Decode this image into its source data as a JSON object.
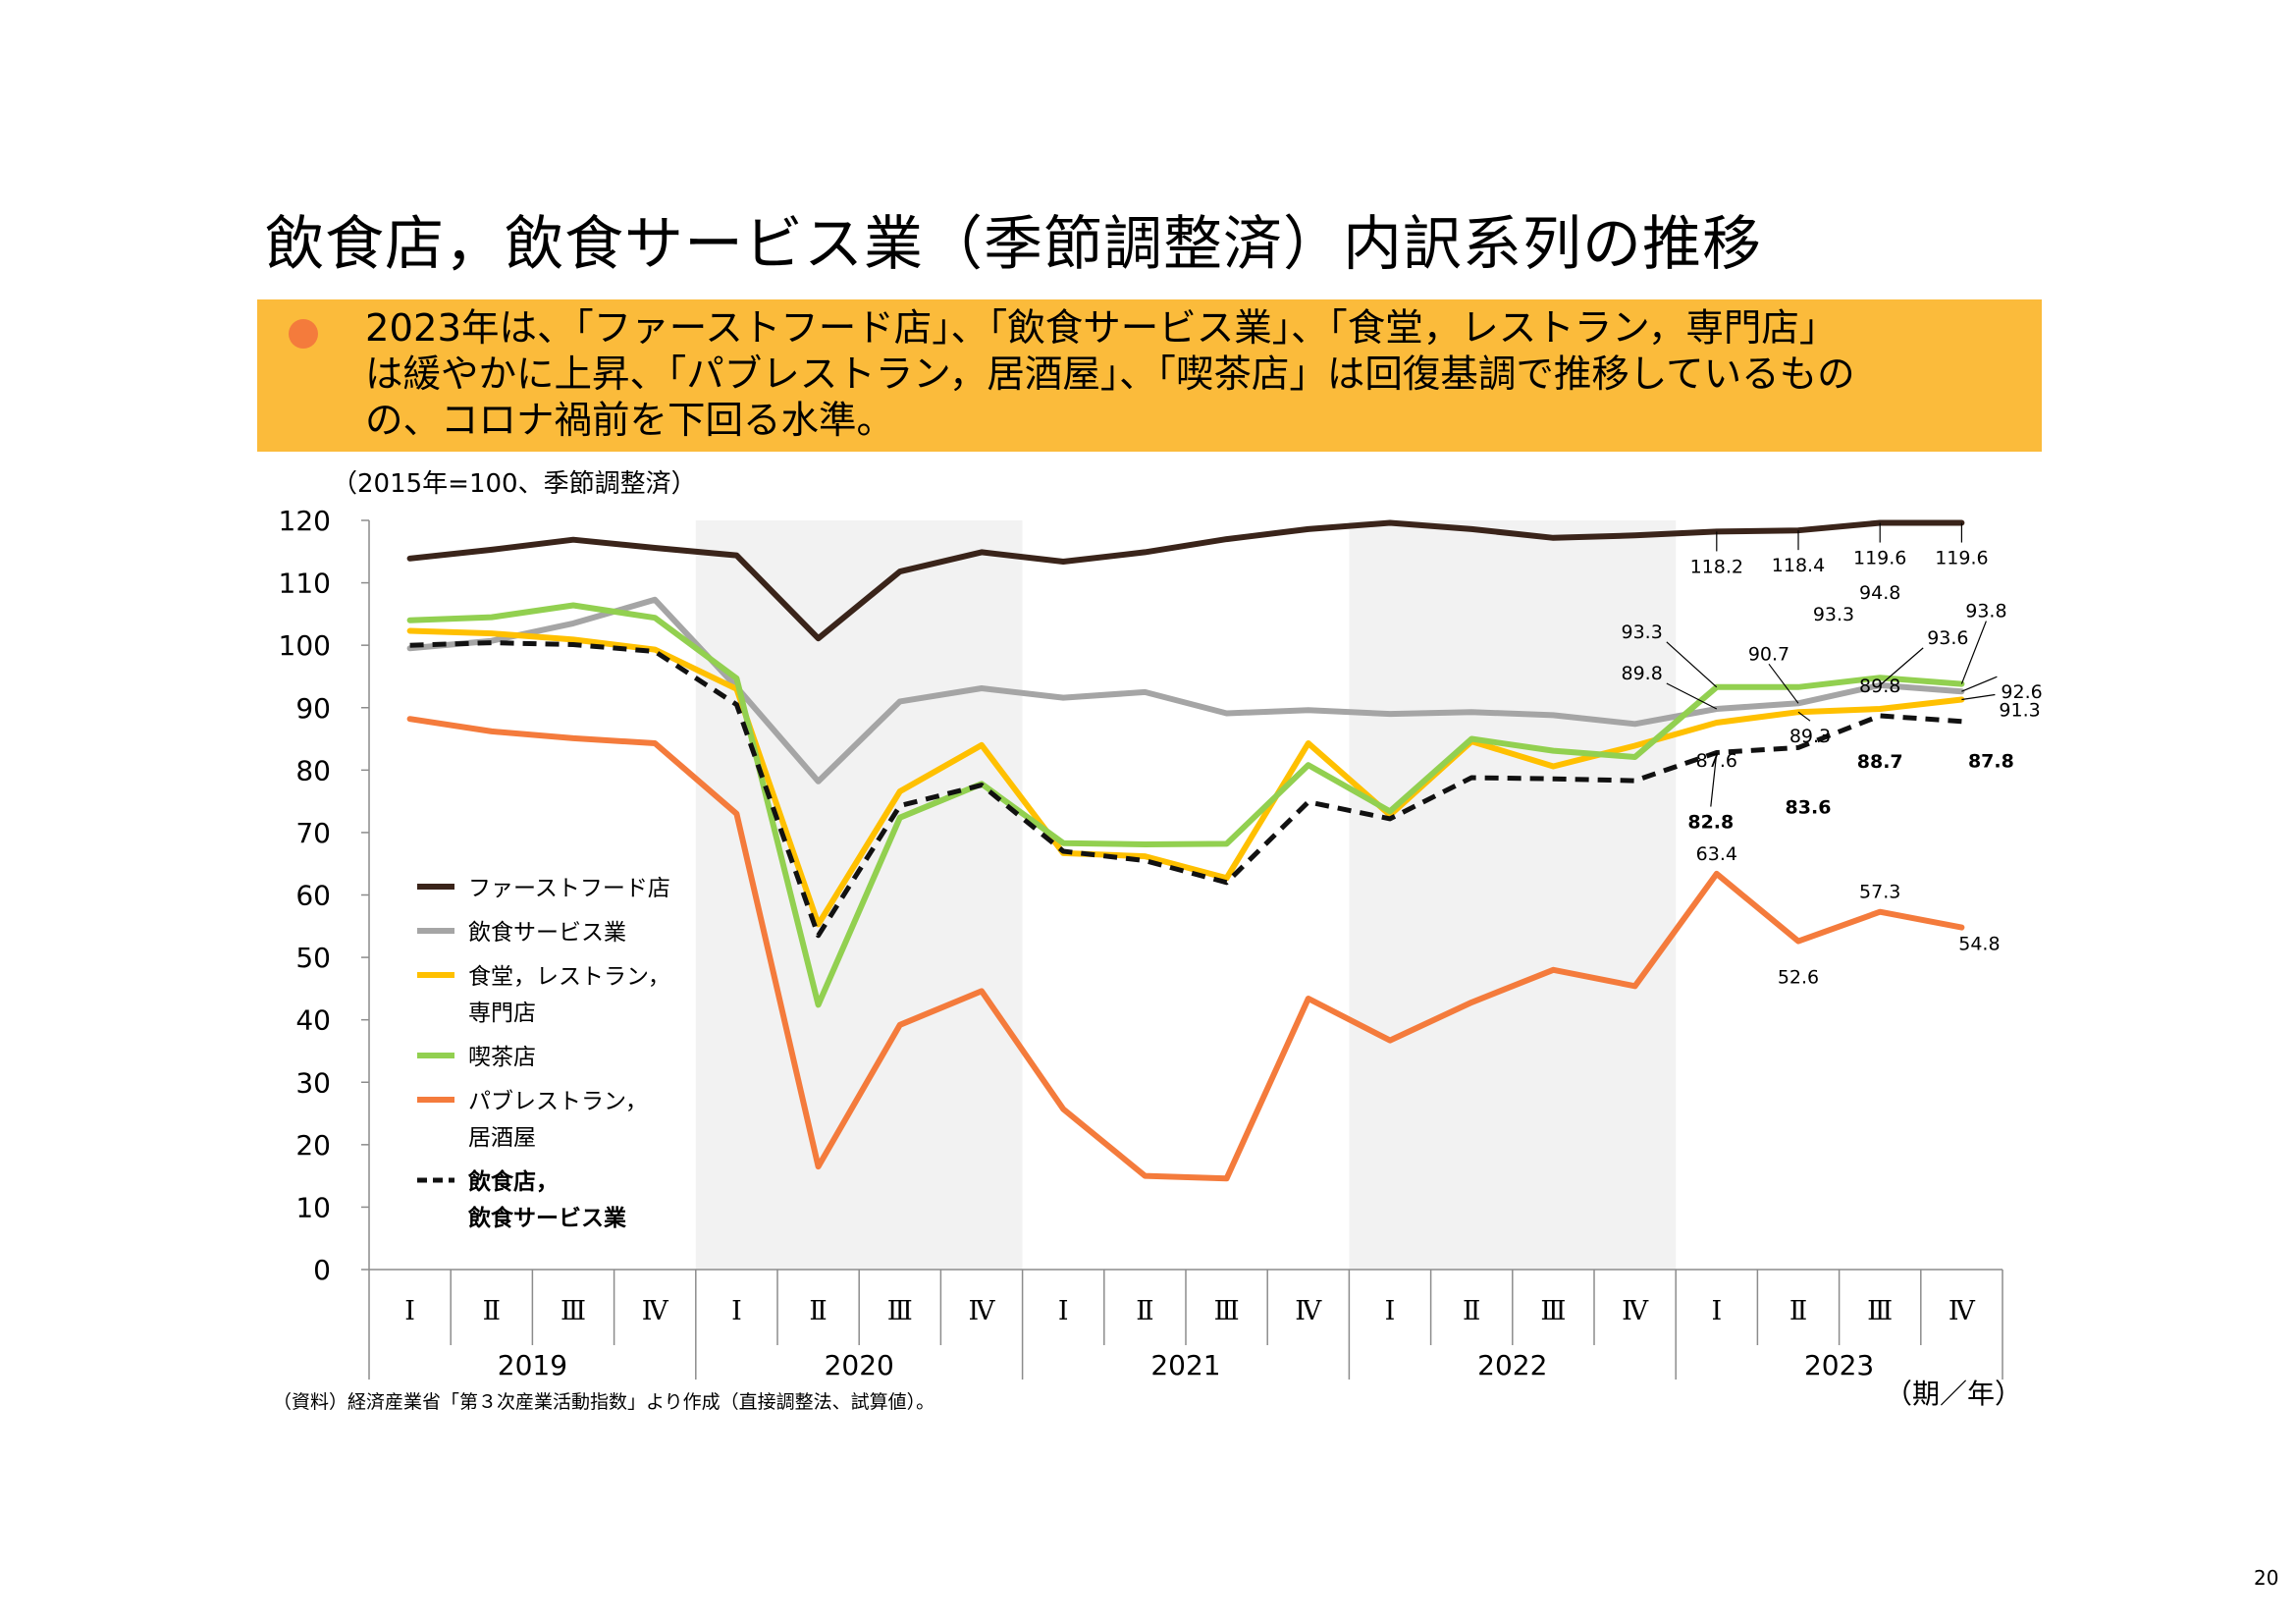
{
  "slide": {
    "title": "飲食店，飲食サービス業（季節調整済）内訳系列の推移",
    "summary": "2023年は、「ファーストフード店」、「飲食サービス業」、「食堂，レストラン，専門店」\nは緩やかに上昇、「パブレストラン，居酒屋」、「喫茶店」は回復基調で推移しているもの\nの、コロナ禍前を下回る水準。",
    "source_note": "（資料）経済産業省「第３次産業活動指数」より作成（直接調整法、試算値）。",
    "page_number": "20"
  },
  "colors": {
    "bullet": "#F47B3C",
    "summary_bg": "#FBBB3B",
    "shade": "#F2F2F2",
    "fastfood": "#3A241A",
    "service": "#A5A5A5",
    "restaurant": "#FFC000",
    "cafe": "#92D050",
    "pub": "#F47B3C",
    "total": "#111111"
  },
  "chart_data": {
    "type": "line",
    "unit_label": "（2015年=100、季節調整済）",
    "x_unit_label": "（期／年）",
    "ylim": [
      0,
      120
    ],
    "yticks": [
      0,
      10,
      20,
      30,
      40,
      50,
      60,
      70,
      80,
      90,
      100,
      110,
      120
    ],
    "quarter_labels": [
      "Ⅰ",
      "Ⅱ",
      "Ⅲ",
      "Ⅳ",
      "Ⅰ",
      "Ⅱ",
      "Ⅲ",
      "Ⅳ",
      "Ⅰ",
      "Ⅱ",
      "Ⅲ",
      "Ⅳ",
      "Ⅰ",
      "Ⅱ",
      "Ⅲ",
      "Ⅳ",
      "Ⅰ",
      "Ⅱ",
      "Ⅲ",
      "Ⅳ"
    ],
    "years": [
      "2019",
      "2020",
      "2021",
      "2022",
      "2023"
    ],
    "shaded_years": [
      "2020",
      "2022"
    ],
    "series": [
      {
        "key": "fastfood",
        "name": "ファーストフード店",
        "style": "solid",
        "values": [
          113.9,
          115.3,
          116.9,
          115.6,
          114.4,
          101.1,
          111.8,
          114.9,
          113.4,
          114.9,
          117.0,
          118.6,
          119.6,
          118.6,
          117.2,
          117.6,
          118.2,
          118.4,
          119.6,
          119.6
        ]
      },
      {
        "key": "service",
        "name": "飲食サービス業",
        "style": "solid",
        "values": [
          99.5,
          100.7,
          103.5,
          107.3,
          93.3,
          78.2,
          91.0,
          93.1,
          91.6,
          92.5,
          89.1,
          89.6,
          89.0,
          89.3,
          88.8,
          87.4,
          89.8,
          90.7,
          93.6,
          92.6
        ]
      },
      {
        "key": "restaurant",
        "name": "食堂，レストラン，専門店",
        "style": "solid",
        "values": [
          102.3,
          101.9,
          100.9,
          99.3,
          93.0,
          55.3,
          76.6,
          84.0,
          66.7,
          66.2,
          62.7,
          84.3,
          72.8,
          84.6,
          80.6,
          83.9,
          87.6,
          89.3,
          89.8,
          91.3
        ]
      },
      {
        "key": "cafe",
        "name": "喫茶店",
        "style": "solid",
        "values": [
          104.0,
          104.5,
          106.4,
          104.4,
          94.7,
          42.4,
          72.4,
          77.8,
          68.3,
          68.1,
          68.2,
          80.8,
          73.4,
          85.0,
          83.1,
          82.1,
          93.3,
          93.3,
          94.8,
          93.8
        ]
      },
      {
        "key": "pub",
        "name": "パブレストラン，居酒屋",
        "style": "solid",
        "values": [
          88.2,
          86.2,
          85.1,
          84.3,
          73.0,
          16.5,
          39.2,
          44.6,
          25.7,
          15.0,
          14.6,
          43.4,
          36.7,
          42.8,
          48.0,
          45.4,
          63.4,
          52.6,
          57.3,
          54.8
        ]
      },
      {
        "key": "total",
        "name": "飲食店，飲食サービス業",
        "style": "dashed",
        "values": [
          100.0,
          100.4,
          100.1,
          99.0,
          90.5,
          53.5,
          74.3,
          77.6,
          67.0,
          65.5,
          62.0,
          74.9,
          72.2,
          78.8,
          78.6,
          78.3,
          82.8,
          83.6,
          88.7,
          87.8
        ]
      }
    ],
    "legend": [
      {
        "key": "fastfood",
        "line1": "ファーストフード店",
        "line2": ""
      },
      {
        "key": "service",
        "line1": "飲食サービス業",
        "line2": ""
      },
      {
        "key": "restaurant",
        "line1": "食堂，レストラン，",
        "line2": "専門店"
      },
      {
        "key": "cafe",
        "line1": "喫茶店",
        "line2": ""
      },
      {
        "key": "pub",
        "line1": "パブレストラン，",
        "line2": "居酒屋"
      },
      {
        "key": "total",
        "line1": "飲食店，",
        "line2": "飲食サービス業",
        "bold": true
      }
    ],
    "data_labels": [
      {
        "series": "fastfood",
        "qi": 16,
        "text": "118.2"
      },
      {
        "series": "fastfood",
        "qi": 17,
        "text": "118.4"
      },
      {
        "series": "fastfood",
        "qi": 18,
        "text": "119.6"
      },
      {
        "series": "fastfood",
        "qi": 19,
        "text": "119.6"
      },
      {
        "series": "cafe",
        "qi": 16,
        "text": "93.3"
      },
      {
        "series": "service",
        "qi": 16,
        "text": "89.8"
      },
      {
        "series": "restaurant",
        "qi": 16,
        "text": "87.6"
      },
      {
        "series": "service",
        "qi": 17,
        "text": "90.7"
      },
      {
        "series": "cafe",
        "qi": 17,
        "text": "93.3"
      },
      {
        "series": "restaurant",
        "qi": 17,
        "text": "89.3"
      },
      {
        "series": "cafe",
        "qi": 18,
        "text": "94.8"
      },
      {
        "series": "service",
        "qi": 18,
        "text": "93.6"
      },
      {
        "series": "restaurant",
        "qi": 18,
        "text": "89.8"
      },
      {
        "series": "cafe",
        "qi": 19,
        "text": "93.8"
      },
      {
        "series": "service",
        "qi": 19,
        "text": "92.6"
      },
      {
        "series": "restaurant",
        "qi": 19,
        "text": "91.3"
      },
      {
        "series": "total",
        "qi": 16,
        "text": "82.8",
        "bold": true
      },
      {
        "series": "total",
        "qi": 17,
        "text": "83.6",
        "bold": true
      },
      {
        "series": "total",
        "qi": 18,
        "text": "88.7",
        "bold": true
      },
      {
        "series": "total",
        "qi": 19,
        "text": "87.8",
        "bold": true
      },
      {
        "series": "pub",
        "qi": 16,
        "text": "63.4"
      },
      {
        "series": "pub",
        "qi": 17,
        "text": "52.6"
      },
      {
        "series": "pub",
        "qi": 18,
        "text": "57.3"
      },
      {
        "series": "pub",
        "qi": 19,
        "text": "54.8"
      }
    ]
  }
}
